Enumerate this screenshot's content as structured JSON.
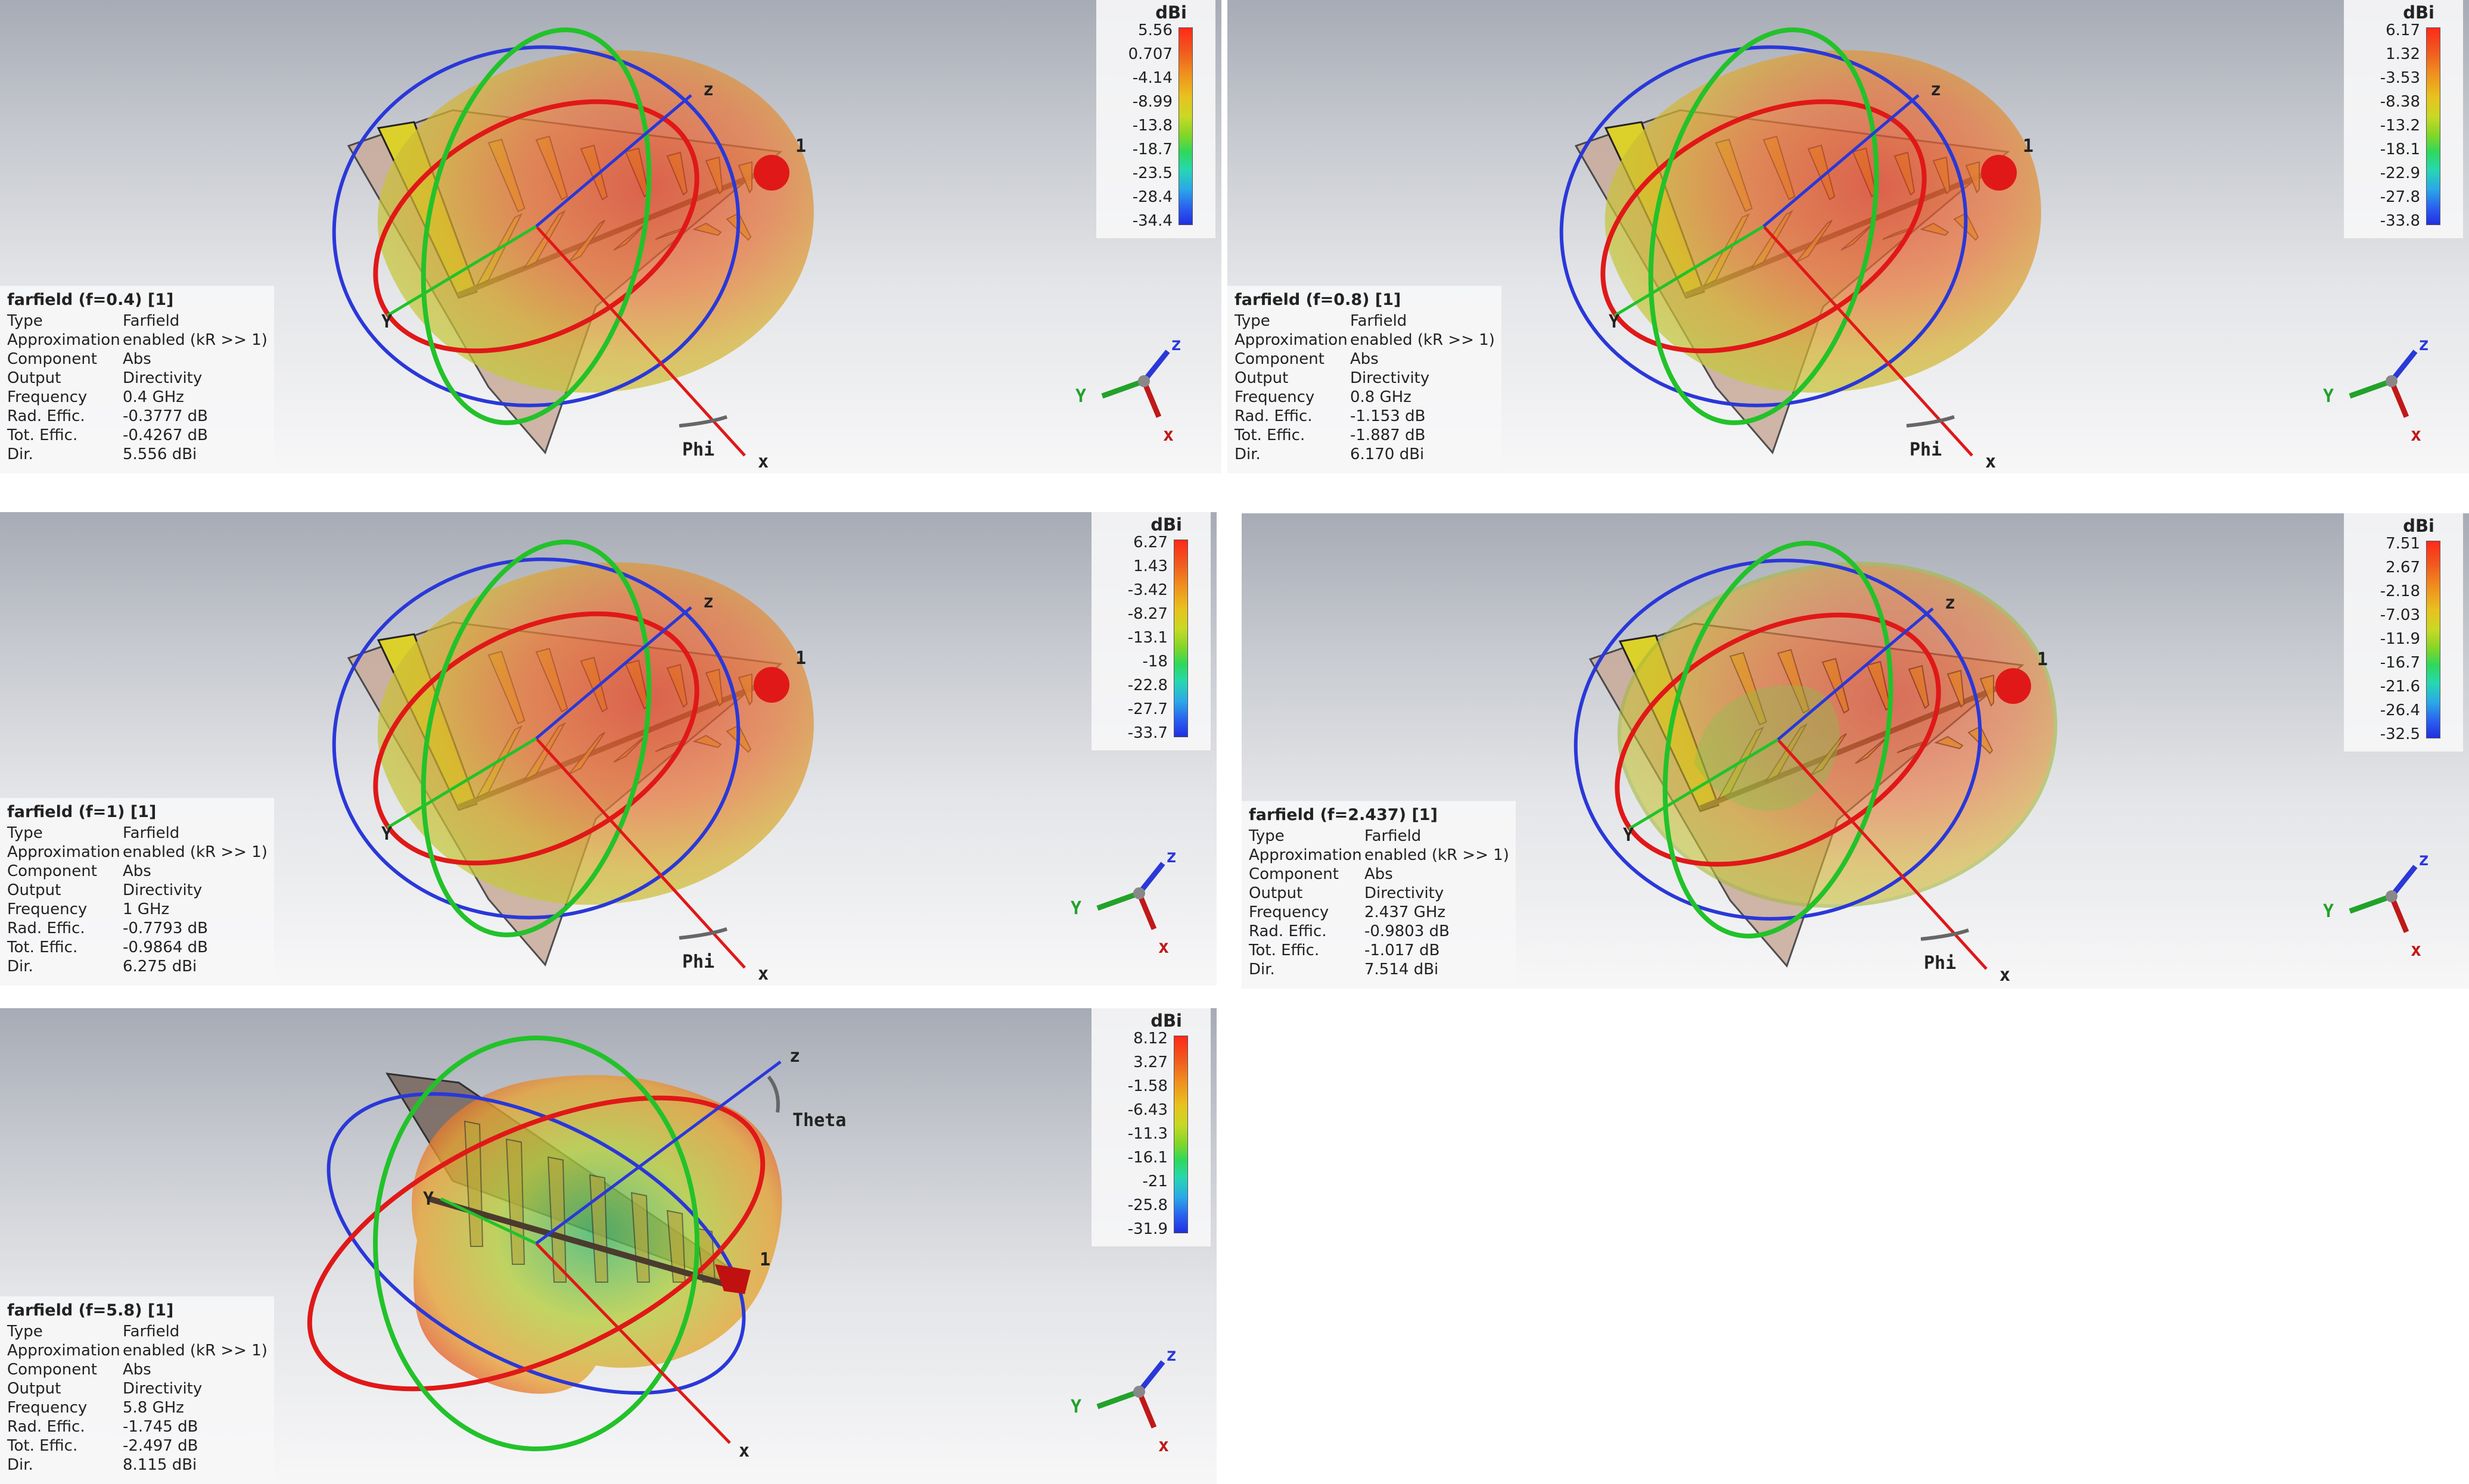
{
  "colorbar_unit": "dBi",
  "panels": [
    {
      "title": "farfield (f=0.4) [1]",
      "rows": [
        {
          "label": "Type",
          "value": "Farfield"
        },
        {
          "label": "Approximation",
          "value": "enabled (kR >> 1)"
        },
        {
          "label": "Component",
          "value": "Abs"
        },
        {
          "label": "Output",
          "value": "Directivity"
        },
        {
          "label": "Frequency",
          "value": "0.4 GHz"
        },
        {
          "label": "Rad. Effic.",
          "value": "-0.3777 dB"
        },
        {
          "label": "Tot. Effic.",
          "value": "-0.4267 dB"
        },
        {
          "label": "Dir.",
          "value": "5.556 dBi"
        }
      ],
      "scale": [
        "5.56",
        "0.707",
        "-4.14",
        "-8.99",
        "-13.8",
        "-18.7",
        "-23.5",
        "-28.4",
        "-34.4"
      ],
      "labels": {
        "z": "z",
        "y": "Y",
        "x": "x",
        "one": "1",
        "arc": "Phi"
      }
    },
    {
      "title": "farfield (f=0.8) [1]",
      "rows": [
        {
          "label": "Type",
          "value": "Farfield"
        },
        {
          "label": "Approximation",
          "value": "enabled (kR >> 1)"
        },
        {
          "label": "Component",
          "value": "Abs"
        },
        {
          "label": "Output",
          "value": "Directivity"
        },
        {
          "label": "Frequency",
          "value": "0.8 GHz"
        },
        {
          "label": "Rad. Effic.",
          "value": "-1.153 dB"
        },
        {
          "label": "Tot. Effic.",
          "value": "-1.887 dB"
        },
        {
          "label": "Dir.",
          "value": "6.170 dBi"
        }
      ],
      "scale": [
        "6.17",
        "1.32",
        "-3.53",
        "-8.38",
        "-13.2",
        "-18.1",
        "-22.9",
        "-27.8",
        "-33.8"
      ],
      "labels": {
        "z": "z",
        "y": "Y",
        "x": "x",
        "one": "1",
        "arc": "Phi"
      }
    },
    {
      "title": "farfield (f=1) [1]",
      "rows": [
        {
          "label": "Type",
          "value": "Farfield"
        },
        {
          "label": "Approximation",
          "value": "enabled (kR >> 1)"
        },
        {
          "label": "Component",
          "value": "Abs"
        },
        {
          "label": "Output",
          "value": "Directivity"
        },
        {
          "label": "Frequency",
          "value": "1 GHz"
        },
        {
          "label": "Rad. Effic.",
          "value": "-0.7793 dB"
        },
        {
          "label": "Tot. Effic.",
          "value": "-0.9864 dB"
        },
        {
          "label": "Dir.",
          "value": "6.275 dBi"
        }
      ],
      "scale": [
        "6.27",
        "1.43",
        "-3.42",
        "-8.27",
        "-13.1",
        "-18",
        "-22.8",
        "-27.7",
        "-33.7"
      ],
      "labels": {
        "z": "z",
        "y": "Y",
        "x": "x",
        "one": "1",
        "arc": "Phi"
      }
    },
    {
      "title": "farfield (f=2.437) [1]",
      "rows": [
        {
          "label": "Type",
          "value": "Farfield"
        },
        {
          "label": "Approximation",
          "value": "enabled (kR >> 1)"
        },
        {
          "label": "Component",
          "value": "Abs"
        },
        {
          "label": "Output",
          "value": "Directivity"
        },
        {
          "label": "Frequency",
          "value": "2.437 GHz"
        },
        {
          "label": "Rad. Effic.",
          "value": "-0.9803 dB"
        },
        {
          "label": "Tot. Effic.",
          "value": "-1.017 dB"
        },
        {
          "label": "Dir.",
          "value": "7.514 dBi"
        }
      ],
      "scale": [
        "7.51",
        "2.67",
        "-2.18",
        "-7.03",
        "-11.9",
        "-16.7",
        "-21.6",
        "-26.4",
        "-32.5"
      ],
      "labels": {
        "z": "z",
        "y": "Y",
        "x": "x",
        "one": "1",
        "arc": "Phi"
      }
    },
    {
      "title": "farfield (f=5.8) [1]",
      "rows": [
        {
          "label": "Type",
          "value": "Farfield"
        },
        {
          "label": "Approximation",
          "value": "enabled (kR >> 1)"
        },
        {
          "label": "Component",
          "value": "Abs"
        },
        {
          "label": "Output",
          "value": "Directivity"
        },
        {
          "label": "Frequency",
          "value": "5.8 GHz"
        },
        {
          "label": "Rad. Effic.",
          "value": "-1.745 dB"
        },
        {
          "label": "Tot. Effic.",
          "value": "-2.497 dB"
        },
        {
          "label": "Dir.",
          "value": "8.115 dBi"
        }
      ],
      "scale": [
        "8.12",
        "3.27",
        "-1.58",
        "-6.43",
        "-11.3",
        "-16.1",
        "-21",
        "-25.8",
        "-31.9"
      ],
      "labels": {
        "z": "z",
        "y": "Y",
        "x": "x",
        "one": "1",
        "arc": "Theta"
      }
    }
  ],
  "triad": {
    "z": "z",
    "y": "Y",
    "x": "x"
  }
}
